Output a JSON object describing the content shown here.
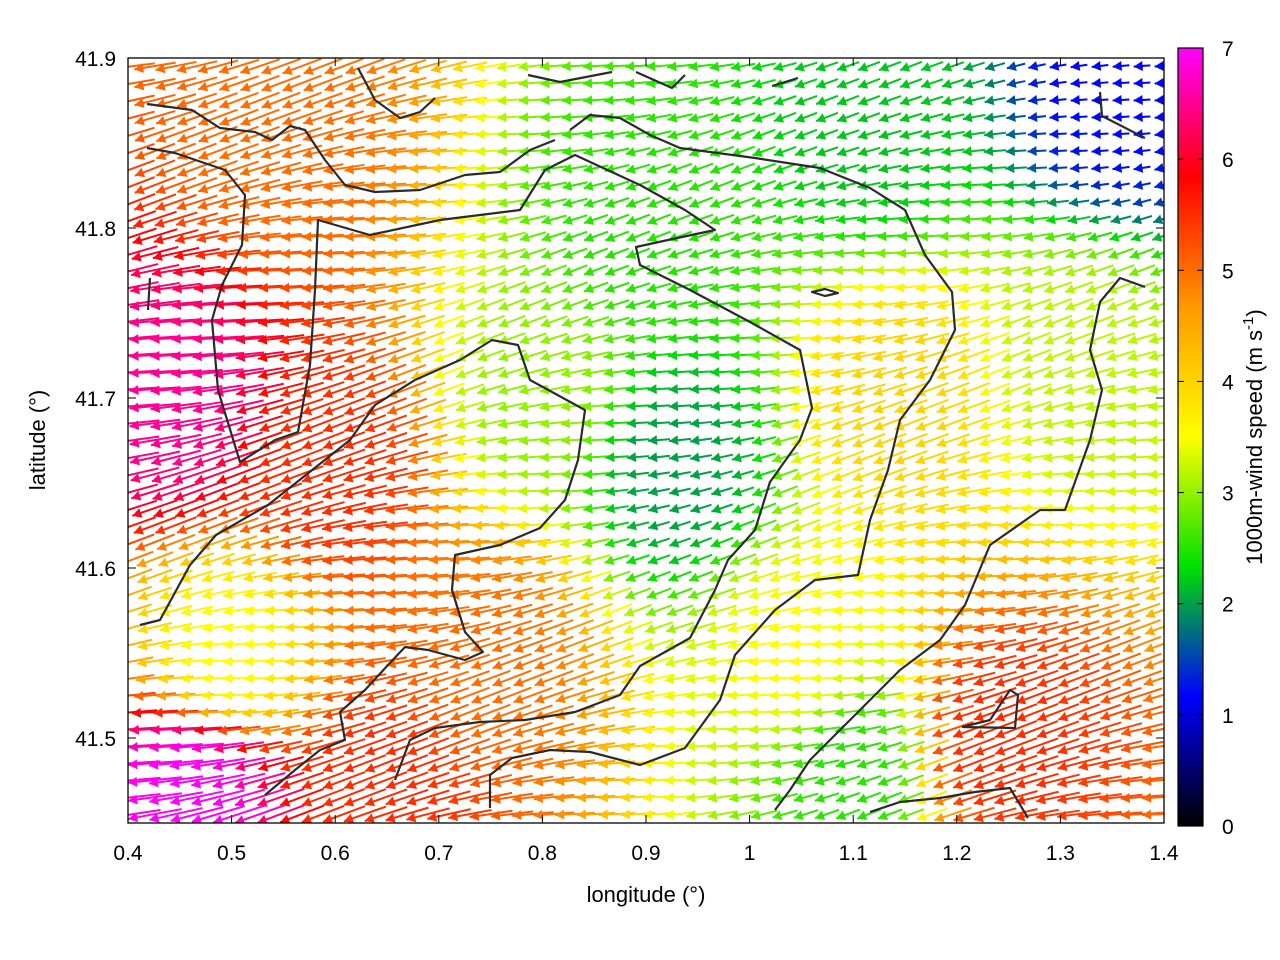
{
  "chart_data": {
    "type": "vector-field",
    "title": "",
    "xlabel": "longitude (°)",
    "ylabel": "latitude (°)",
    "xlim": [
      0.4,
      1.4
    ],
    "ylim": [
      41.45,
      41.9
    ],
    "xticks": [
      0.4,
      0.5,
      0.6,
      0.7,
      0.8,
      0.9,
      1.0,
      1.1,
      1.2,
      1.3,
      1.4
    ],
    "xtick_labels": [
      "0.4",
      "0.5",
      "0.6",
      "0.7",
      "0.8",
      "0.9",
      "1",
      "1.1",
      "1.2",
      "1.3",
      "1.4"
    ],
    "yticks": [
      41.5,
      41.6,
      41.7,
      41.8,
      41.9
    ],
    "ytick_labels": [
      "41.5",
      "41.6",
      "41.7",
      "41.8",
      "41.9"
    ],
    "colorbar": {
      "label_main": "1000m-wind speed (m s",
      "label_sup": "-1",
      "label_end": ")",
      "range": [
        0,
        7
      ],
      "ticks": [
        0,
        1,
        2,
        3,
        4,
        5,
        6,
        7
      ],
      "tick_labels": [
        "0",
        "1",
        "2",
        "3",
        "4",
        "5",
        "6",
        "7"
      ],
      "colormap": [
        "#000000",
        "#0000ff",
        "#00e000",
        "#ffff00",
        "#ff9900",
        "#ff0000",
        "#ff00ff"
      ]
    },
    "wind_field_description_points": [
      {
        "lon": 0.45,
        "lat": 41.7,
        "speed": 6.5
      },
      {
        "lon": 0.47,
        "lat": 41.47,
        "speed": 7.0
      },
      {
        "lon": 0.6,
        "lat": 41.66,
        "speed": 5.5
      },
      {
        "lon": 0.55,
        "lat": 41.85,
        "speed": 5.0
      },
      {
        "lon": 0.75,
        "lat": 41.55,
        "speed": 5.0
      },
      {
        "lon": 0.8,
        "lat": 41.7,
        "speed": 3.0
      },
      {
        "lon": 0.93,
        "lat": 41.66,
        "speed": 2.0
      },
      {
        "lon": 0.9,
        "lat": 41.8,
        "speed": 2.5
      },
      {
        "lon": 1.12,
        "lat": 41.86,
        "speed": 2.2
      },
      {
        "lon": 1.36,
        "lat": 41.88,
        "speed": 1.2
      },
      {
        "lon": 1.32,
        "lat": 41.72,
        "speed": 3.2
      },
      {
        "lon": 1.15,
        "lat": 41.7,
        "speed": 4.0
      },
      {
        "lon": 1.25,
        "lat": 41.5,
        "speed": 5.5
      },
      {
        "lon": 1.1,
        "lat": 41.48,
        "speed": 2.5
      },
      {
        "lon": 1.05,
        "lat": 41.55,
        "speed": 3.5
      },
      {
        "lon": 0.65,
        "lat": 41.47,
        "speed": 5.5
      },
      {
        "lon": 0.5,
        "lat": 41.55,
        "speed": 3.5
      }
    ]
  }
}
